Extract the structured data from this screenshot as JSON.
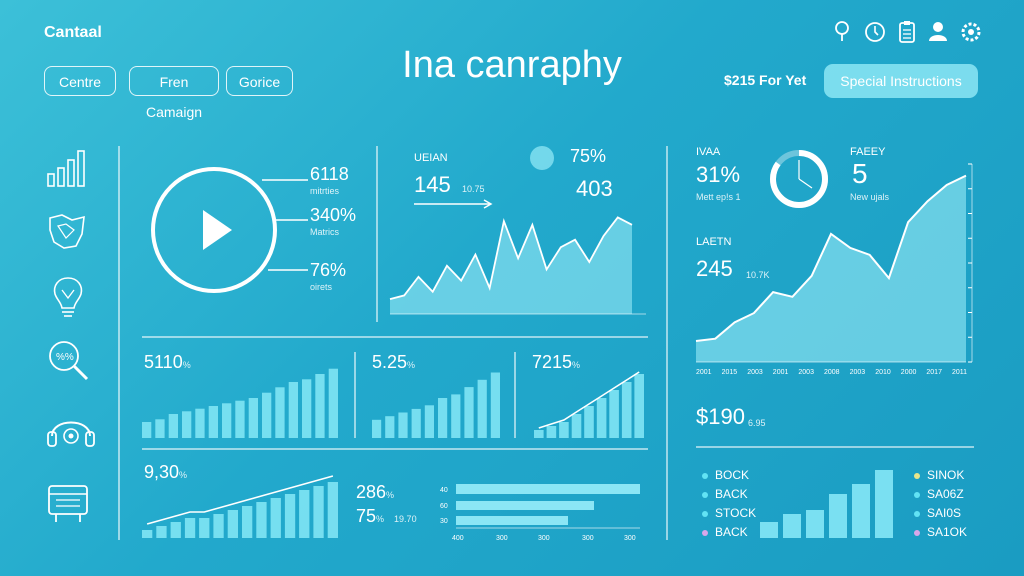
{
  "header": {
    "brand": "Cantaal",
    "title": "Ina canraphy",
    "nav": [
      "Centre",
      "Fren Camaign",
      "Gorice"
    ],
    "price": "$215 For Yet",
    "special_button": "Special Instructions",
    "icons": [
      "pin-icon",
      "clock-icon",
      "clipboard-icon",
      "user-icon",
      "settings-icon"
    ]
  },
  "sidebar": {
    "icons": [
      "bar-chart-icon",
      "map-icon",
      "lightbulb-icon",
      "search-icon",
      "headset-icon",
      "calendar-icon"
    ]
  },
  "video_panel": {
    "stats": [
      {
        "value": "6118",
        "label": "mitrties"
      },
      {
        "value": "340%",
        "label": "Matrics"
      },
      {
        "value": "76%",
        "label": "oirets"
      }
    ]
  },
  "trend_panel": {
    "label": "UEIAN",
    "value_a": "145",
    "value_a_sub": "10.75",
    "percent": "75%",
    "value_b": "403",
    "chart_values": [
      4,
      5,
      10,
      6,
      13,
      9,
      16,
      7,
      25,
      15,
      24,
      12,
      18,
      20,
      14,
      21,
      26,
      24
    ]
  },
  "bars_row": [
    {
      "value": "5110",
      "suffix": "%"
    },
    {
      "value": "5.25",
      "suffix": "%"
    },
    {
      "value": "7215",
      "suffix": "%"
    }
  ],
  "bottom_left": {
    "value": "9,30",
    "suffix": "%"
  },
  "hbar_panel": {
    "value_a": "286",
    "value_a_suffix": "%",
    "value_b": "75",
    "value_b_suffix": "%",
    "value_b_sub": "19.70",
    "tick_labels": [
      "40",
      "60",
      "30"
    ],
    "x_labels": [
      "400",
      "300",
      "300",
      "300",
      "300"
    ]
  },
  "right_panel": {
    "stat1_label": "IVAA",
    "stat1_value": "31%",
    "stat1_sub": "Mett ep!s 1",
    "donut_percent": 0.85,
    "stat2_label": "FAEEY",
    "stat2_value": "5",
    "stat2_sub": "New ujals",
    "stat3_label": "LAETN",
    "stat3_value": "245",
    "stat3_sub": "10.7K",
    "x_labels": [
      "2001",
      "2015",
      "2003",
      "2001",
      "2003",
      "2008",
      "2003",
      "2010",
      "2000",
      "2017",
      "2011"
    ],
    "total_value": "$190",
    "total_sub": "6.95"
  },
  "legend_left": [
    "BOCK",
    "BACK",
    "STOCK",
    "BACK"
  ],
  "legend_right": [
    "SINOK",
    "SA06Z",
    "SAI0S",
    "SA1OK"
  ],
  "colors": {
    "bar": "#7fe4f4",
    "area": "#86dff0",
    "dot_cyan": "#62e3f4",
    "dot_pink": "#d7a7ea",
    "dot_yellow": "#e8e68a"
  }
}
